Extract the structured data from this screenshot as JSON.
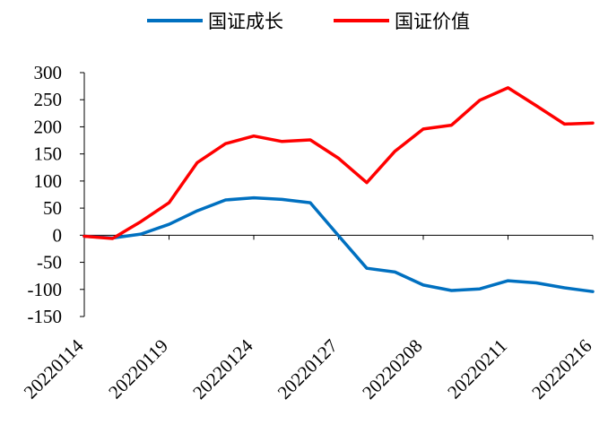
{
  "chart_data": {
    "type": "line",
    "title": "",
    "xlabel": "",
    "ylabel": "",
    "ylim": [
      -150,
      300
    ],
    "y_ticks": [
      "300",
      "250",
      "200",
      "150",
      "100",
      "50",
      "0",
      "-50",
      "-100",
      "-150"
    ],
    "x_ticks": [
      "20220114",
      "20220119",
      "20220124",
      "20220127",
      "20220208",
      "20220211",
      "20220216"
    ],
    "x_tick_positions": [
      0,
      3,
      6,
      9,
      12,
      15,
      18
    ],
    "legend_position": "top",
    "grid": false,
    "series": [
      {
        "name": "国证成长",
        "color": "#0070C0",
        "values": [
          -2,
          -5,
          2,
          20,
          45,
          65,
          69,
          66,
          60,
          -1,
          -61,
          -68,
          -92,
          -102,
          -99,
          -84,
          -88,
          -97,
          -104
        ]
      },
      {
        "name": "国证价值",
        "color": "#FF0000",
        "values": [
          -2,
          -6,
          25,
          60,
          134,
          169,
          183,
          173,
          176,
          142,
          97,
          155,
          196,
          203,
          249,
          272,
          239,
          205,
          207
        ]
      }
    ]
  }
}
